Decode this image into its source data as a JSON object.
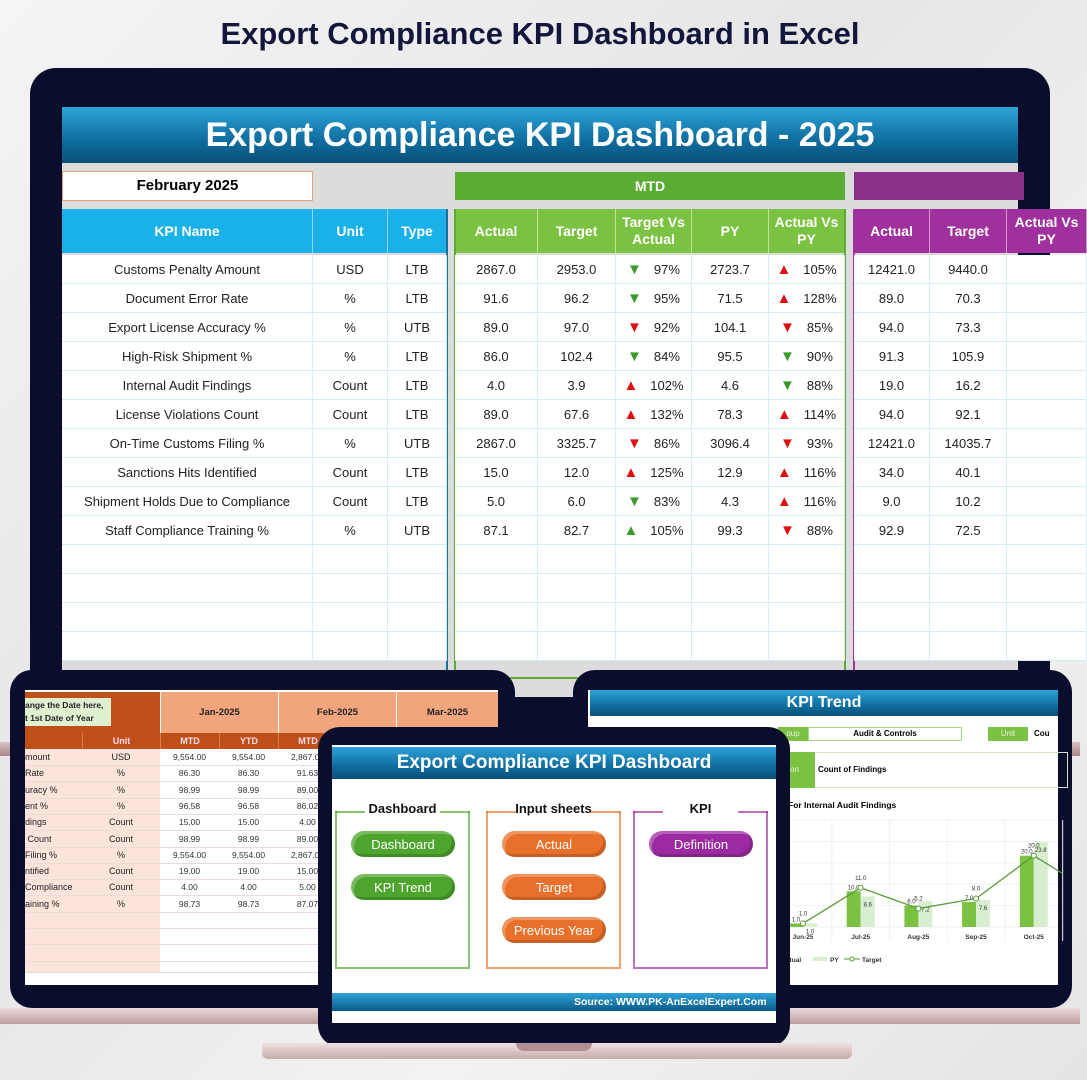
{
  "page_title": "Export Compliance KPI Dashboard in Excel",
  "colors": {
    "navy": "#0a0d2c",
    "mtd_green": "#5aad32",
    "ytd_purple": "#8b2f8a",
    "kpi_cyan": "#1ab0e8",
    "up_red": "#e01010",
    "down_green": "#3a9a2a",
    "input_orange": "#c65a1e"
  },
  "main": {
    "title": "Export Compliance KPI Dashboard - 2025",
    "month": "February 2025",
    "mtd_label": "MTD",
    "headers": {
      "kpi": "KPI Name",
      "unit": "Unit",
      "type": "Type",
      "actual": "Actual",
      "target": "Target",
      "tva": "Target Vs Actual",
      "py": "PY",
      "avp": "Actual Vs PY",
      "ytd_actual": "Actual",
      "ytd_target": "Target",
      "ytd_avp": "Actual Vs PY"
    },
    "rows": [
      {
        "kpi": "Customs Penalty Amount",
        "unit": "USD",
        "type": "LTB",
        "actual": "2867.0",
        "target": "2953.0",
        "tva_dir": "down",
        "tva_color": "green",
        "tva": "97%",
        "py": "2723.7",
        "avp_dir": "up",
        "avp_color": "red",
        "avp": "105%",
        "ytd_actual": "12421.0",
        "ytd_target": "9440.0"
      },
      {
        "kpi": "Document Error Rate",
        "unit": "%",
        "type": "LTB",
        "actual": "91.6",
        "target": "96.2",
        "tva_dir": "down",
        "tva_color": "green",
        "tva": "95%",
        "py": "71.5",
        "avp_dir": "up",
        "avp_color": "red",
        "avp": "128%",
        "ytd_actual": "89.0",
        "ytd_target": "70.3"
      },
      {
        "kpi": "Export License Accuracy %",
        "unit": "%",
        "type": "UTB",
        "actual": "89.0",
        "target": "97.0",
        "tva_dir": "down",
        "tva_color": "red",
        "tva": "92%",
        "py": "104.1",
        "avp_dir": "down",
        "avp_color": "red",
        "avp": "85%",
        "ytd_actual": "94.0",
        "ytd_target": "73.3"
      },
      {
        "kpi": "High-Risk Shipment %",
        "unit": "%",
        "type": "LTB",
        "actual": "86.0",
        "target": "102.4",
        "tva_dir": "down",
        "tva_color": "green",
        "tva": "84%",
        "py": "95.5",
        "avp_dir": "down",
        "avp_color": "green",
        "avp": "90%",
        "ytd_actual": "91.3",
        "ytd_target": "105.9"
      },
      {
        "kpi": "Internal Audit Findings",
        "unit": "Count",
        "type": "LTB",
        "actual": "4.0",
        "target": "3.9",
        "tva_dir": "up",
        "tva_color": "red",
        "tva": "102%",
        "py": "4.6",
        "avp_dir": "down",
        "avp_color": "green",
        "avp": "88%",
        "ytd_actual": "19.0",
        "ytd_target": "16.2"
      },
      {
        "kpi": "License Violations Count",
        "unit": "Count",
        "type": "LTB",
        "actual": "89.0",
        "target": "67.6",
        "tva_dir": "up",
        "tva_color": "red",
        "tva": "132%",
        "py": "78.3",
        "avp_dir": "up",
        "avp_color": "red",
        "avp": "114%",
        "ytd_actual": "94.0",
        "ytd_target": "92.1"
      },
      {
        "kpi": "On-Time Customs Filing %",
        "unit": "%",
        "type": "UTB",
        "actual": "2867.0",
        "target": "3325.7",
        "tva_dir": "down",
        "tva_color": "red",
        "tva": "86%",
        "py": "3096.4",
        "avp_dir": "down",
        "avp_color": "red",
        "avp": "93%",
        "ytd_actual": "12421.0",
        "ytd_target": "14035.7"
      },
      {
        "kpi": "Sanctions Hits Identified",
        "unit": "Count",
        "type": "LTB",
        "actual": "15.0",
        "target": "12.0",
        "tva_dir": "up",
        "tva_color": "red",
        "tva": "125%",
        "py": "12.9",
        "avp_dir": "up",
        "avp_color": "red",
        "avp": "116%",
        "ytd_actual": "34.0",
        "ytd_target": "40.1"
      },
      {
        "kpi": "Shipment Holds Due to Compliance",
        "unit": "Count",
        "type": "LTB",
        "actual": "5.0",
        "target": "6.0",
        "tva_dir": "down",
        "tva_color": "green",
        "tva": "83%",
        "py": "4.3",
        "avp_dir": "up",
        "avp_color": "red",
        "avp": "116%",
        "ytd_actual": "9.0",
        "ytd_target": "10.2"
      },
      {
        "kpi": "Staff Compliance Training %",
        "unit": "%",
        "type": "UTB",
        "actual": "87.1",
        "target": "82.7",
        "tva_dir": "up",
        "tva_color": "green",
        "tva": "105%",
        "py": "99.3",
        "avp_dir": "down",
        "avp_color": "red",
        "avp": "88%",
        "ytd_actual": "92.9",
        "ytd_target": "72.5"
      }
    ]
  },
  "input_sheet": {
    "callout": "ange the Date here,\nt 1st Date of Year",
    "months": [
      "Jan-2025",
      "Feb-2025",
      "Mar-2025"
    ],
    "subheaders": [
      "Unit",
      "MTD",
      "YTD",
      "MTD"
    ],
    "rows": [
      {
        "name": "mount",
        "unit": "USD",
        "v": [
          "9,554.00",
          "9,554.00",
          "2,867.00"
        ]
      },
      {
        "name": "Rate",
        "unit": "%",
        "v": [
          "86.30",
          "86.30",
          "91.63"
        ]
      },
      {
        "name": "uracy %",
        "unit": "%",
        "v": [
          "98.99",
          "98.99",
          "89.00"
        ]
      },
      {
        "name": "ent %",
        "unit": "%",
        "v": [
          "96.58",
          "96.58",
          "86.02"
        ]
      },
      {
        "name": "dings",
        "unit": "Count",
        "v": [
          "15.00",
          "15.00",
          "4.00"
        ]
      },
      {
        "name": " Count",
        "unit": "Count",
        "v": [
          "98.99",
          "98.99",
          "89.00"
        ]
      },
      {
        "name": "Filing %",
        "unit": "%",
        "v": [
          "9,554.00",
          "9,554.00",
          "2,867.00"
        ]
      },
      {
        "name": "ntified",
        "unit": "Count",
        "v": [
          "19.00",
          "19.00",
          "15.00"
        ]
      },
      {
        "name": "Compliance",
        "unit": "Count",
        "v": [
          "4.00",
          "4.00",
          "5.00"
        ]
      },
      {
        "name": "aining %",
        "unit": "%",
        "v": [
          "98.73",
          "98.73",
          "87.07"
        ]
      }
    ]
  },
  "home": {
    "title": "Export Compliance KPI Dashboard",
    "groups": [
      {
        "title": "Dashboard",
        "buttons": [
          "Dashboard",
          "KPI Trend"
        ],
        "color": "#4ea52e"
      },
      {
        "title": "Input sheets",
        "buttons": [
          "Actual",
          "Target",
          "Previous Year"
        ],
        "color": "#e8702a"
      },
      {
        "title": "KPI",
        "buttons": [
          "Definition"
        ],
        "color": "#9b2aa0"
      }
    ],
    "source": "Source: WWW.PK-AnExcelExpert.Com"
  },
  "trend": {
    "title": "KPI Trend",
    "group_label": "oup",
    "group_value": "Audit & Controls",
    "unit_label": "Unit",
    "unit_value": "Cou",
    "def_label": "on",
    "def_value": "Count of Findings",
    "chart_title": "For Internal Audit Findings",
    "legend": [
      "ctual",
      "PY",
      "Target"
    ]
  },
  "chart_data": {
    "type": "bar",
    "title": "For Internal Audit Findings",
    "categories": [
      "Jun-25",
      "Jul-25",
      "Aug-25",
      "Sep-25",
      "Oct-25"
    ],
    "series": [
      {
        "name": "Actual",
        "type": "bar",
        "color": "#7cc242",
        "values": [
          1.0,
          10.0,
          6.0,
          7.0,
          20.0
        ]
      },
      {
        "name": "PY",
        "type": "bar",
        "color": "#d9eed0",
        "values": [
          1.0,
          8.6,
          7.2,
          7.6,
          23.8
        ]
      },
      {
        "name": "Target",
        "type": "line",
        "color": "#5a9a3a",
        "values": [
          1.0,
          11.0,
          5.2,
          8.0,
          20.0
        ]
      }
    ],
    "ylim": [
      0,
      30
    ],
    "grid": true,
    "legend": "bottom"
  }
}
